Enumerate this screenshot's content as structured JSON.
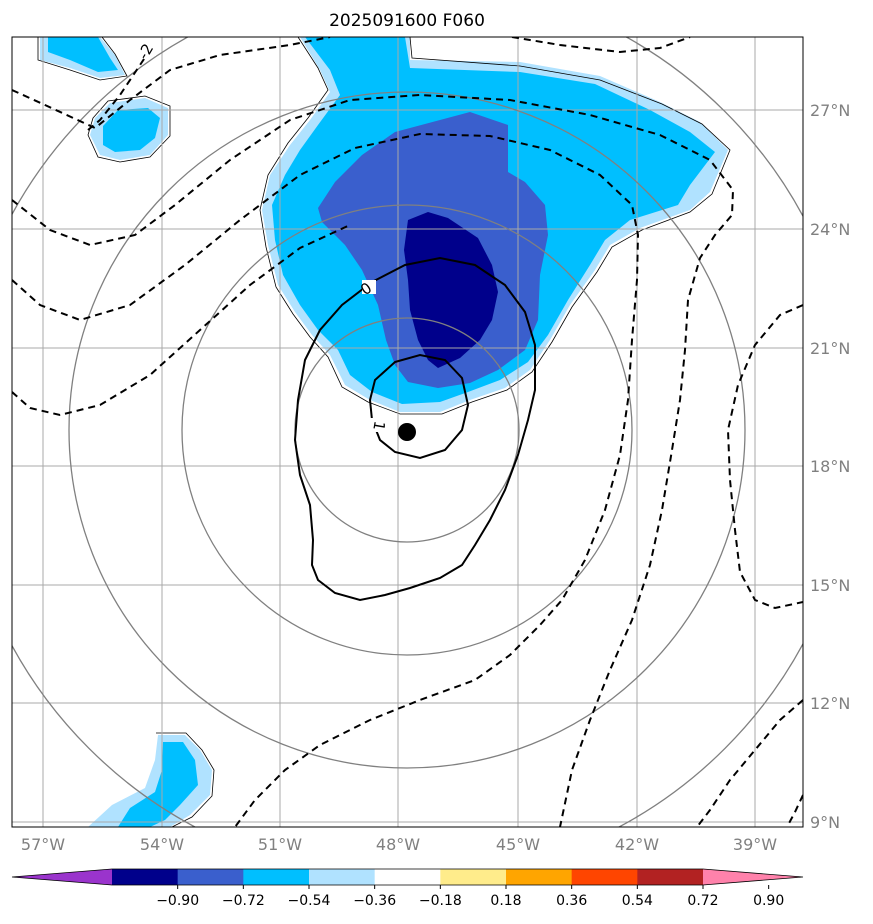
{
  "title": "2025091600 F060",
  "map": {
    "lon_ticks": [
      "57°W",
      "54°W",
      "51°W",
      "48°W",
      "45°W",
      "42°W",
      "39°W"
    ],
    "lat_ticks": [
      "27°N",
      "24°N",
      "21°N",
      "18°N",
      "15°N",
      "12°N",
      "9°N"
    ],
    "grid_color": "#a0a0a0",
    "range_ring_color": "#808080",
    "center_marker": "storm-center-dot",
    "contour_labels": [
      "-2",
      "0",
      "1"
    ]
  },
  "colorbar": {
    "ticks": [
      "−0.90",
      "−0.72",
      "−0.54",
      "−0.36",
      "−0.18",
      "0.18",
      "0.36",
      "0.54",
      "0.72",
      "0.90"
    ],
    "colors": [
      "#9a34cc",
      "#00008b",
      "#3a5fcd",
      "#00bfff",
      "#b0e2ff",
      "#ffffff",
      "#ffec8b",
      "#ffa500",
      "#ff4500",
      "#b22222",
      "#ff82ab"
    ]
  },
  "fill_colors": {
    "light_blue": "#b0e2ff",
    "blue": "#00bfff",
    "royal_blue": "#3a5fcd",
    "navy": "#00008b"
  }
}
